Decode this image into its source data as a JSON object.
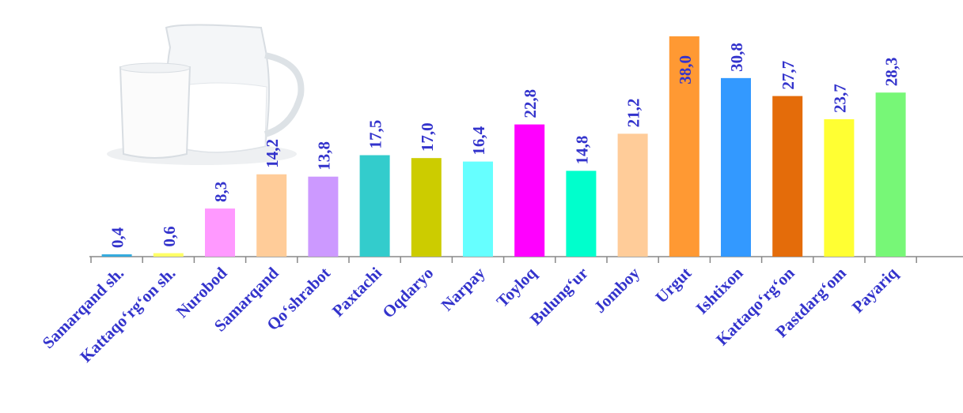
{
  "chart_data": {
    "type": "bar",
    "categories": [
      "Samarqand sh.",
      "Kattaqo‘rg‘on sh.",
      "Nurobod",
      "Samarqand",
      "Qo‘shrabot",
      "Paxtachi",
      "Oqdaryo",
      "Narpay",
      "Toyloq",
      "Bulung‘ur",
      "Jomboy",
      "Urgut",
      "Ishtixon",
      "Kattaqo‘rg‘on",
      "Pastdarg‘om",
      "Payariq"
    ],
    "values": [
      0.4,
      0.6,
      8.3,
      14.2,
      13.8,
      17.5,
      17.0,
      16.4,
      22.8,
      14.8,
      21.2,
      38.0,
      30.8,
      27.7,
      23.7,
      28.3
    ],
    "value_labels": [
      "0,4",
      "0,6",
      "8,3",
      "14,2",
      "13,8",
      "17,5",
      "17,0",
      "16,4",
      "22,8",
      "14,8",
      "21,2",
      "38,0",
      "30,8",
      "27,7",
      "23,7",
      "28,3"
    ],
    "colors": [
      "#33aadd",
      "#ffff66",
      "#ff99ff",
      "#ffcc99",
      "#cc99ff",
      "#33cccc",
      "#cccc00",
      "#66ffff",
      "#ff00ff",
      "#00ffcc",
      "#ffcc99",
      "#ff9933",
      "#3399ff",
      "#e46c0a",
      "#ffff33",
      "#77f777"
    ],
    "ylim": [
      0,
      38
    ]
  }
}
